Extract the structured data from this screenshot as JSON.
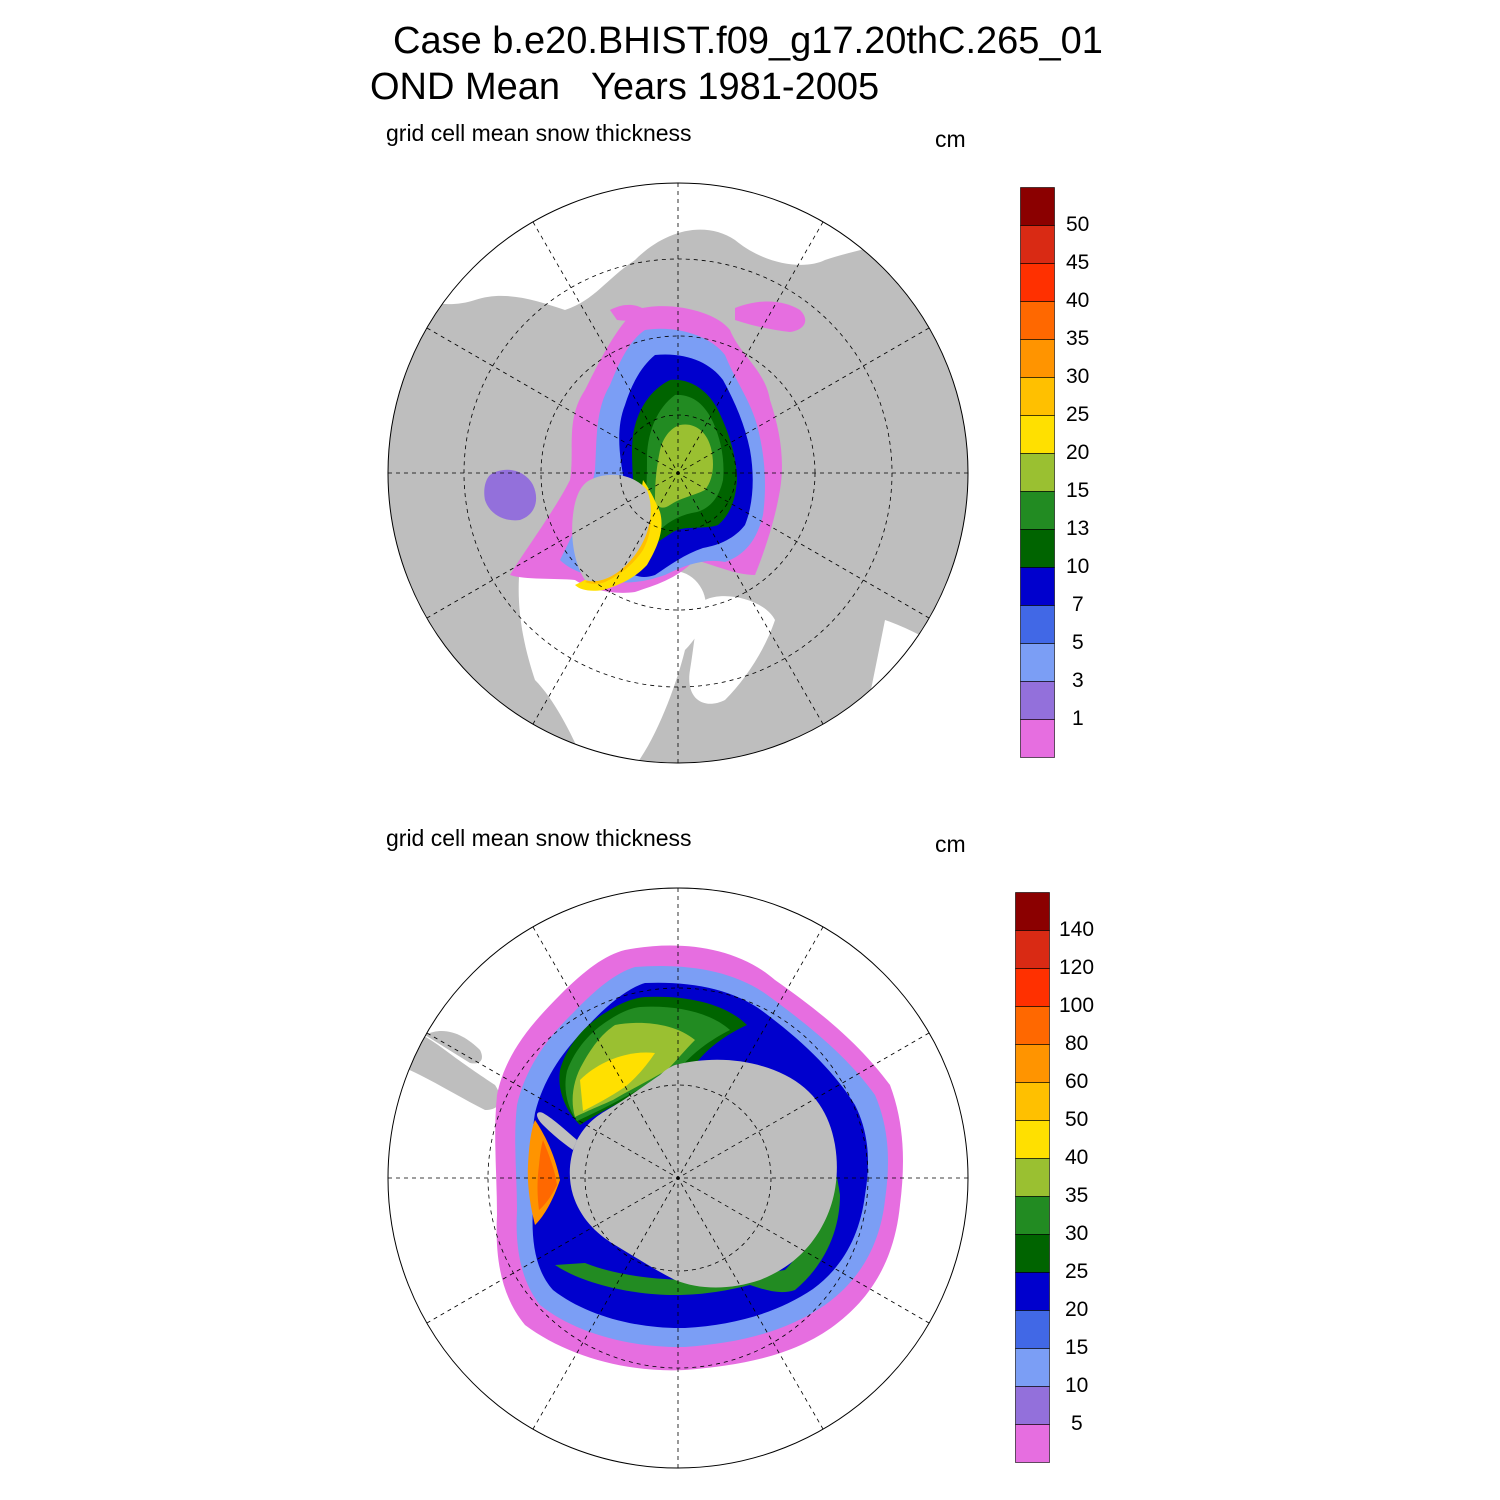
{
  "header": {
    "case_line": "Case b.e20.BHIST.f09_g17.20thC.265_01",
    "period_line": "OND Mean   Years 1981-2005"
  },
  "colors": {
    "land": "#bebebe",
    "ocean": "#ffffff",
    "palette": [
      "#e66ee0",
      "#9370db",
      "#7b9ef5",
      "#4168e6",
      "#0000cd",
      "#006400",
      "#228b22",
      "#9ac031",
      "#ffe000",
      "#ffc000",
      "#ff9400",
      "#ff6800",
      "#ff3000",
      "#d92a14",
      "#8b0000"
    ]
  },
  "panels": [
    {
      "id": "north",
      "variable_label": "grid cell mean snow thickness",
      "units": "cm",
      "levels": [
        "50",
        "45",
        "40",
        "35",
        "30",
        "25",
        "20",
        "15",
        "13",
        "10",
        "7",
        "5",
        "3",
        "1"
      ]
    },
    {
      "id": "south",
      "variable_label": "grid cell mean snow thickness",
      "units": "cm",
      "levels": [
        "140",
        "120",
        "100",
        "80",
        "60",
        "50",
        "40",
        "35",
        "30",
        "25",
        "20",
        "15",
        "10",
        "5"
      ]
    }
  ]
}
